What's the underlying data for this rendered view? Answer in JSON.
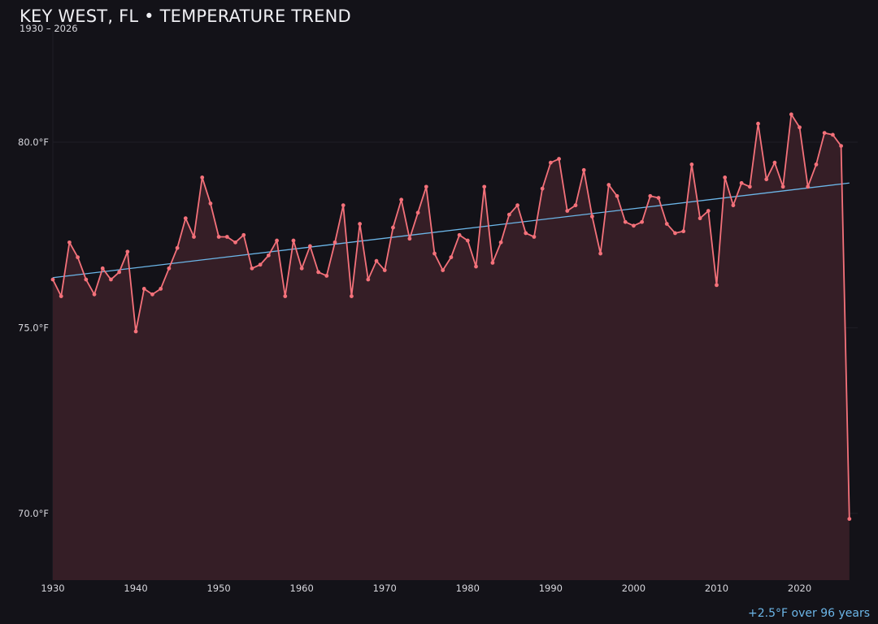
{
  "chart_data": {
    "type": "line",
    "title": "KEY WEST, FL • TEMPERATURE TREND",
    "subtitle": "1930 – 2026",
    "annotation": "+2.5°F over 96 years",
    "ylim": [
      68.2,
      83.0
    ],
    "xlim": [
      1930,
      2027
    ],
    "grid": "horizontal",
    "x_ticks": [
      1930,
      1940,
      1950,
      1960,
      1970,
      1980,
      1990,
      2000,
      2010,
      2020
    ],
    "y_ticks": [
      {
        "value": 70.0,
        "label": "70.0°F"
      },
      {
        "value": 75.0,
        "label": "75.0°F"
      },
      {
        "value": 80.0,
        "label": "80.0°F"
      }
    ],
    "colors": {
      "series": "#f4717a",
      "fill": "#351e26",
      "trend": "#6cb6e8",
      "grid": "#1f1e26"
    },
    "x": [
      1930,
      1931,
      1932,
      1933,
      1934,
      1935,
      1936,
      1937,
      1938,
      1939,
      1940,
      1941,
      1942,
      1943,
      1944,
      1945,
      1946,
      1947,
      1948,
      1949,
      1950,
      1951,
      1952,
      1953,
      1954,
      1955,
      1956,
      1957,
      1958,
      1959,
      1960,
      1961,
      1962,
      1963,
      1964,
      1965,
      1966,
      1967,
      1968,
      1969,
      1970,
      1971,
      1972,
      1973,
      1974,
      1975,
      1976,
      1977,
      1978,
      1979,
      1980,
      1981,
      1982,
      1983,
      1984,
      1985,
      1986,
      1987,
      1988,
      1989,
      1990,
      1991,
      1992,
      1993,
      1994,
      1995,
      1996,
      1997,
      1998,
      1999,
      2000,
      2001,
      2002,
      2003,
      2004,
      2005,
      2006,
      2007,
      2008,
      2009,
      2010,
      2011,
      2012,
      2013,
      2014,
      2015,
      2016,
      2017,
      2018,
      2019,
      2020,
      2021,
      2022,
      2023,
      2024,
      2025,
      2026
    ],
    "series": [
      {
        "values": [
          76.3,
          75.85,
          77.3,
          76.9,
          76.3,
          75.9,
          76.6,
          76.3,
          76.5,
          77.05,
          74.9,
          76.05,
          75.9,
          76.05,
          76.6,
          77.15,
          77.95,
          77.45,
          79.05,
          78.35,
          77.45,
          77.45,
          77.3,
          77.5,
          76.6,
          76.7,
          76.95,
          77.35,
          75.85,
          77.35,
          76.6,
          77.2,
          76.5,
          76.4,
          77.3,
          78.3,
          75.85,
          77.8,
          76.3,
          76.8,
          76.55,
          77.7,
          78.45,
          77.4,
          78.1,
          78.8,
          77.0,
          76.55,
          76.9,
          77.5,
          77.35,
          76.65,
          78.8,
          76.75,
          77.3,
          78.05,
          78.3,
          77.55,
          77.45,
          78.75,
          79.45,
          79.55,
          78.15,
          78.3,
          79.25,
          78.0,
          77.0,
          78.85,
          78.55,
          77.85,
          77.75,
          77.85,
          78.55,
          78.5,
          77.8,
          77.55,
          77.6,
          79.4,
          77.95,
          78.15,
          76.15,
          79.05,
          78.3,
          78.9,
          78.8,
          80.5,
          79.0,
          79.45,
          78.8,
          80.75,
          80.4,
          78.8,
          79.4,
          80.25,
          80.2,
          79.9,
          69.85
        ]
      }
    ],
    "trend_line": {
      "start": [
        1930,
        76.35
      ],
      "end": [
        2026,
        78.9
      ]
    }
  }
}
